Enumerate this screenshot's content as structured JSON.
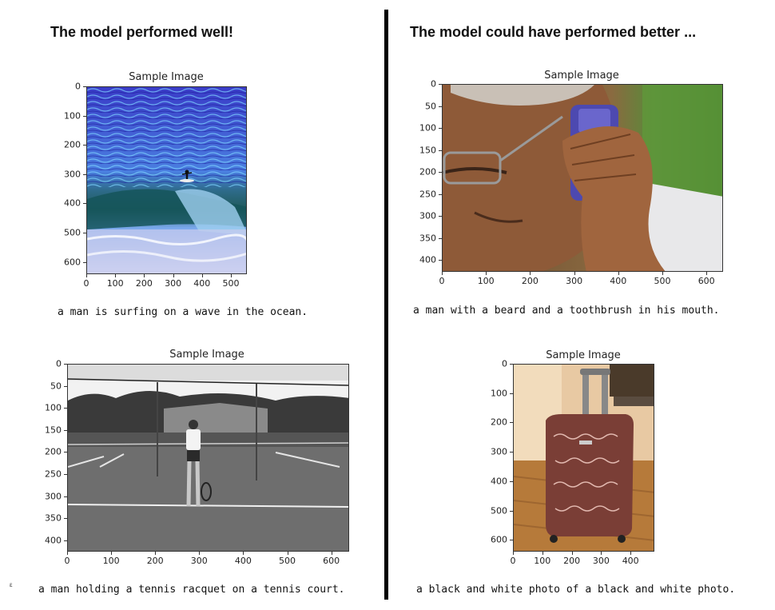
{
  "sections": {
    "good": {
      "heading": "The model performed well!"
    },
    "bad": {
      "heading": "The model could have performed better ..."
    }
  },
  "plots": [
    {
      "title": "Sample Image",
      "caption": "a man is surfing on a wave in the ocean.",
      "image": "surfer-on-wave",
      "xticks": [
        "0",
        "100",
        "200",
        "300",
        "400",
        "500"
      ],
      "yticks": [
        "0",
        "100",
        "200",
        "300",
        "400",
        "500",
        "600"
      ]
    },
    {
      "title": "Sample Image",
      "caption": "a man with a beard and a toothbrush in his mouth.",
      "image": "man-on-phone",
      "xticks": [
        "0",
        "100",
        "200",
        "300",
        "400",
        "500",
        "600"
      ],
      "yticks": [
        "0",
        "50",
        "100",
        "150",
        "200",
        "250",
        "300",
        "350",
        "400"
      ]
    },
    {
      "title": "Sample Image",
      "caption": "a man holding a tennis racquet on a tennis court.",
      "image": "tennis-court-bw",
      "xticks": [
        "0",
        "100",
        "200",
        "300",
        "400",
        "500",
        "600"
      ],
      "yticks": [
        "0",
        "50",
        "100",
        "150",
        "200",
        "250",
        "300",
        "350",
        "400"
      ]
    },
    {
      "title": "Sample Image",
      "caption": "a black and white photo of a black and white photo.",
      "image": "suitcase-in-room",
      "xticks": [
        "0",
        "100",
        "200",
        "300",
        "400"
      ],
      "yticks": [
        "0",
        "100",
        "200",
        "300",
        "400",
        "500",
        "600"
      ]
    }
  ],
  "marks": {
    "stray": "ε"
  },
  "colors": {
    "divider": "#000000",
    "text": "#111111"
  }
}
